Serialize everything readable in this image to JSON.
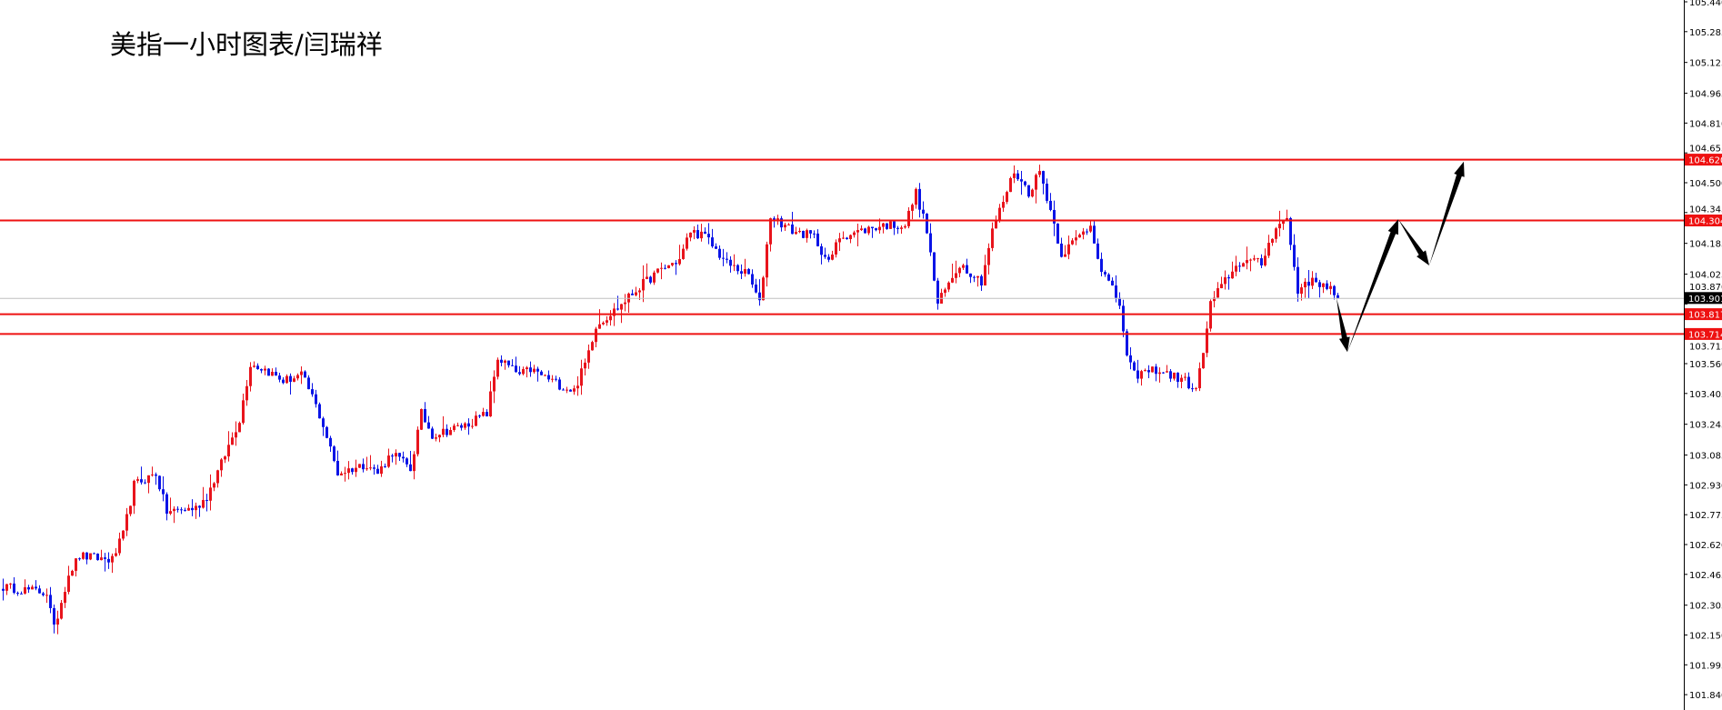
{
  "chart_data": {
    "type": "candlestick",
    "title": "美指一小时图表/闫瑞祥",
    "ylim": [
      101.8,
      105.45
    ],
    "y_ticks": [
      "105.440",
      "105.285",
      "105.125",
      "104.965",
      "104.810",
      "104.655",
      "104.500",
      "104.345",
      "104.185",
      "104.025",
      "103.870",
      "103.715",
      "103.560",
      "103.405",
      "103.245",
      "103.085",
      "102.930",
      "102.775",
      "102.620",
      "102.465",
      "102.305",
      "102.150",
      "101.995",
      "101.840"
    ],
    "colors": {
      "bull": "#e8141c",
      "bear": "#0a14e6",
      "level": "#ee1111",
      "current": "#c0c0c0",
      "arrow": "#000000"
    },
    "close_waypoints": [
      {
        "bar": 0,
        "close": 102.4
      },
      {
        "bar": 12,
        "close": 102.37
      },
      {
        "bar": 14,
        "close": 102.18
      },
      {
        "bar": 18,
        "close": 102.47
      },
      {
        "bar": 21,
        "close": 102.56
      },
      {
        "bar": 30,
        "close": 102.54
      },
      {
        "bar": 33,
        "close": 102.67
      },
      {
        "bar": 36,
        "close": 102.93
      },
      {
        "bar": 42,
        "close": 102.99
      },
      {
        "bar": 45,
        "close": 102.79
      },
      {
        "bar": 53,
        "close": 102.81
      },
      {
        "bar": 56,
        "close": 102.87
      },
      {
        "bar": 60,
        "close": 103.04
      },
      {
        "bar": 65,
        "close": 103.27
      },
      {
        "bar": 68,
        "close": 103.56
      },
      {
        "bar": 72,
        "close": 103.53
      },
      {
        "bar": 77,
        "close": 103.47
      },
      {
        "bar": 82,
        "close": 103.5
      },
      {
        "bar": 85,
        "close": 103.39
      },
      {
        "bar": 88,
        "close": 103.24
      },
      {
        "bar": 92,
        "close": 102.99
      },
      {
        "bar": 100,
        "close": 103.04
      },
      {
        "bar": 103,
        "close": 102.99
      },
      {
        "bar": 107,
        "close": 103.1
      },
      {
        "bar": 112,
        "close": 103.01
      },
      {
        "bar": 115,
        "close": 103.3
      },
      {
        "bar": 118,
        "close": 103.19
      },
      {
        "bar": 127,
        "close": 103.24
      },
      {
        "bar": 133,
        "close": 103.3
      },
      {
        "bar": 136,
        "close": 103.59
      },
      {
        "bar": 142,
        "close": 103.5
      },
      {
        "bar": 145,
        "close": 103.53
      },
      {
        "bar": 154,
        "close": 103.44
      },
      {
        "bar": 157,
        "close": 103.42
      },
      {
        "bar": 160,
        "close": 103.56
      },
      {
        "bar": 163,
        "close": 103.76
      },
      {
        "bar": 169,
        "close": 103.85
      },
      {
        "bar": 175,
        "close": 103.96
      },
      {
        "bar": 181,
        "close": 104.05
      },
      {
        "bar": 186,
        "close": 104.1
      },
      {
        "bar": 189,
        "close": 104.25
      },
      {
        "bar": 193,
        "close": 104.22
      },
      {
        "bar": 199,
        "close": 104.08
      },
      {
        "bar": 205,
        "close": 104.02
      },
      {
        "bar": 208,
        "close": 103.87
      },
      {
        "bar": 211,
        "close": 104.33
      },
      {
        "bar": 217,
        "close": 104.25
      },
      {
        "bar": 223,
        "close": 104.22
      },
      {
        "bar": 227,
        "close": 104.08
      },
      {
        "bar": 230,
        "close": 104.22
      },
      {
        "bar": 242,
        "close": 104.28
      },
      {
        "bar": 248,
        "close": 104.28
      },
      {
        "bar": 251,
        "close": 104.45
      },
      {
        "bar": 254,
        "close": 104.25
      },
      {
        "bar": 257,
        "close": 103.87
      },
      {
        "bar": 263,
        "close": 104.08
      },
      {
        "bar": 269,
        "close": 103.99
      },
      {
        "bar": 272,
        "close": 104.25
      },
      {
        "bar": 278,
        "close": 104.56
      },
      {
        "bar": 282,
        "close": 104.45
      },
      {
        "bar": 285,
        "close": 104.56
      },
      {
        "bar": 288,
        "close": 104.36
      },
      {
        "bar": 291,
        "close": 104.13
      },
      {
        "bar": 299,
        "close": 104.28
      },
      {
        "bar": 302,
        "close": 104.05
      },
      {
        "bar": 307,
        "close": 103.87
      },
      {
        "bar": 309,
        "close": 103.59
      },
      {
        "bar": 311,
        "close": 103.5
      },
      {
        "bar": 317,
        "close": 103.53
      },
      {
        "bar": 325,
        "close": 103.47
      },
      {
        "bar": 328,
        "close": 103.42
      },
      {
        "bar": 330,
        "close": 103.62
      },
      {
        "bar": 332,
        "close": 103.87
      },
      {
        "bar": 337,
        "close": 104.02
      },
      {
        "bar": 341,
        "close": 104.1
      },
      {
        "bar": 346,
        "close": 104.08
      },
      {
        "bar": 350,
        "close": 104.28
      },
      {
        "bar": 353,
        "close": 104.31
      },
      {
        "bar": 356,
        "close": 103.93
      },
      {
        "bar": 358,
        "close": 103.99
      },
      {
        "bar": 364,
        "close": 103.97
      },
      {
        "bar": 367,
        "close": 103.9
      }
    ],
    "levels": [
      {
        "price": 104.62,
        "label": "104.620"
      },
      {
        "price": 104.304,
        "label": "104.304"
      },
      {
        "price": 103.817,
        "label": "103.817"
      },
      {
        "price": 103.714,
        "label": "103.714"
      }
    ],
    "current_price": {
      "price": 103.901,
      "label": "103.901"
    },
    "projection_arrows": [
      {
        "from": {
          "bar": 367,
          "price": 103.9
        },
        "to": {
          "bar": 370,
          "price": 103.62
        }
      },
      {
        "from": {
          "bar": 370,
          "price": 103.62
        },
        "to": {
          "bar": 384,
          "price": 104.31
        }
      },
      {
        "from": {
          "bar": 384,
          "price": 104.31
        },
        "to": {
          "bar": 392.5,
          "price": 104.07
        }
      },
      {
        "from": {
          "bar": 392.5,
          "price": 104.07
        },
        "to": {
          "bar": 402,
          "price": 104.61
        }
      }
    ]
  }
}
